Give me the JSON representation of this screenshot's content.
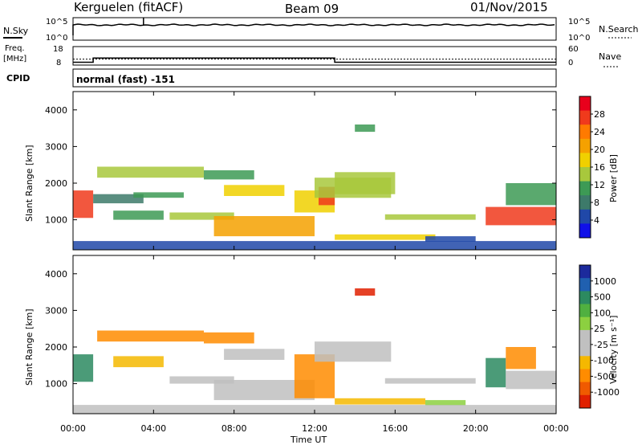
{
  "header": {
    "station": "Kerguelen (fitACF)",
    "beam": "Beam 09",
    "date": "01/Nov/2015"
  },
  "noise_panel": {
    "left_label": "N.Sky",
    "right_label": "N.Search",
    "left_ticks": [
      "10^5",
      "10^0"
    ],
    "right_ticks": [
      "10^5",
      "10^0"
    ]
  },
  "freq_panel": {
    "left_label_1": "Freq.",
    "left_label_2": "[MHz]",
    "right_label": "Nave",
    "left_ticks": [
      "18",
      "8"
    ],
    "right_ticks": [
      "60",
      "0"
    ],
    "freq_steps": [
      {
        "t0": 0.0,
        "t1": 1.0,
        "value": 9.5
      },
      {
        "t0": 1.0,
        "t1": 13.0,
        "value": 11.8
      },
      {
        "t0": 13.0,
        "t1": 24.0,
        "value": 9.5
      }
    ],
    "nave_level": 11.2
  },
  "cpid": {
    "label": "CPID",
    "text": "normal (fast) -151"
  },
  "x_axis": {
    "label": "Time UT",
    "ticks": [
      "00:00",
      "04:00",
      "08:00",
      "12:00",
      "16:00",
      "20:00",
      "00:00"
    ]
  },
  "power_panel": {
    "ylabel": "Slant Range [km]",
    "yticks": [
      "4000",
      "3000",
      "2000",
      "1000"
    ],
    "cbar_label": "Power [dB]",
    "cbar_ticks": [
      "28",
      "24",
      "20",
      "16",
      "12",
      "8",
      "4"
    ],
    "cbar_colors": [
      "#e8001c",
      "#f03a1c",
      "#ff7a00",
      "#f5a100",
      "#f0d000",
      "#a8c83c",
      "#3d9a55",
      "#3d7a6a",
      "#2048a8",
      "#1010e8"
    ]
  },
  "velocity_panel": {
    "ylabel": "Slant Range [km]",
    "yticks": [
      "4000",
      "3000",
      "2000",
      "1000"
    ],
    "cbar_label": "Velocity [m s⁻¹]",
    "cbar_ticks": [
      "1000",
      "500",
      "100",
      "25",
      "-25",
      "-100",
      "-500",
      "-1000"
    ],
    "cbar_colors": [
      "#1c2a9c",
      "#2060b0",
      "#2c8a60",
      "#50b040",
      "#8cd040",
      "#c0c0c0",
      "#c0c0c0",
      "#f5b800",
      "#ff8c00",
      "#f05a00",
      "#e02000"
    ]
  },
  "chart_data": {
    "type": "heatmap",
    "x_range_hours": [
      0,
      24
    ],
    "y_range_km": [
      180,
      4500
    ],
    "power_regions": [
      {
        "t0": 0.0,
        "t1": 1.0,
        "r0": 1050,
        "r1": 1800,
        "power": 27
      },
      {
        "t0": 1.0,
        "t1": 3.5,
        "r0": 1450,
        "r1": 1700,
        "power": 9
      },
      {
        "t0": 1.2,
        "t1": 6.5,
        "r0": 2150,
        "r1": 2450,
        "power": 14
      },
      {
        "t0": 2.0,
        "t1": 4.5,
        "r0": 1000,
        "r1": 1250,
        "power": 12
      },
      {
        "t0": 4.8,
        "t1": 8.0,
        "r0": 1000,
        "r1": 1200,
        "power": 15
      },
      {
        "t0": 3.0,
        "t1": 5.5,
        "r0": 1600,
        "r1": 1750,
        "power": 12
      },
      {
        "t0": 6.5,
        "t1": 9.0,
        "r0": 2100,
        "r1": 2350,
        "power": 12
      },
      {
        "t0": 7.5,
        "t1": 10.5,
        "r0": 1650,
        "r1": 1950,
        "power": 18
      },
      {
        "t0": 7.0,
        "t1": 12.0,
        "r0": 550,
        "r1": 1100,
        "power": 22
      },
      {
        "t0": 11.0,
        "t1": 13.0,
        "r0": 1200,
        "r1": 1800,
        "power": 17
      },
      {
        "t0": 12.2,
        "t1": 13.0,
        "r0": 1400,
        "r1": 1900,
        "power": 26
      },
      {
        "t0": 12.0,
        "t1": 15.8,
        "r0": 1600,
        "r1": 2150,
        "power": 16
      },
      {
        "t0": 13.0,
        "t1": 16.0,
        "r0": 1700,
        "r1": 2300,
        "power": 15
      },
      {
        "t0": 13.0,
        "t1": 18.0,
        "r0": 450,
        "r1": 600,
        "power": 19
      },
      {
        "t0": 14.0,
        "t1": 15.0,
        "r0": 3400,
        "r1": 3600,
        "power": 13
      },
      {
        "t0": 15.5,
        "t1": 20.0,
        "r0": 1000,
        "r1": 1150,
        "power": 16
      },
      {
        "t0": 17.5,
        "t1": 20.0,
        "r0": 400,
        "r1": 550,
        "power": 6
      },
      {
        "t0": 20.5,
        "t1": 24.0,
        "r0": 850,
        "r1": 1350,
        "power": 27
      },
      {
        "t0": 21.5,
        "t1": 24.0,
        "r0": 1400,
        "r1": 2000,
        "power": 12
      },
      {
        "t0": 0.0,
        "t1": 24.0,
        "r0": 180,
        "r1": 420,
        "power": 6
      }
    ],
    "velocity_regions": [
      {
        "t0": 0.0,
        "t1": 1.0,
        "r0": 1050,
        "r1": 1800,
        "velocity": 150
      },
      {
        "t0": 1.2,
        "t1": 6.5,
        "r0": 2150,
        "r1": 2450,
        "velocity": -150
      },
      {
        "t0": 2.0,
        "t1": 4.5,
        "r0": 1450,
        "r1": 1750,
        "velocity": -80
      },
      {
        "t0": 4.8,
        "t1": 8.0,
        "r0": 1000,
        "r1": 1200,
        "velocity": 0
      },
      {
        "t0": 6.5,
        "t1": 9.0,
        "r0": 2100,
        "r1": 2400,
        "velocity": -200
      },
      {
        "t0": 7.5,
        "t1": 10.5,
        "r0": 1650,
        "r1": 1950,
        "velocity": 0
      },
      {
        "t0": 7.0,
        "t1": 12.0,
        "r0": 550,
        "r1": 1100,
        "velocity": 0
      },
      {
        "t0": 11.0,
        "t1": 13.0,
        "r0": 600,
        "r1": 1800,
        "velocity": -300
      },
      {
        "t0": 12.0,
        "t1": 15.8,
        "r0": 1600,
        "r1": 2150,
        "velocity": 0
      },
      {
        "t0": 13.0,
        "t1": 17.5,
        "r0": 430,
        "r1": 600,
        "velocity": -80
      },
      {
        "t0": 14.0,
        "t1": 15.0,
        "r0": 3400,
        "r1": 3600,
        "velocity": -600
      },
      {
        "t0": 15.5,
        "t1": 20.0,
        "r0": 1000,
        "r1": 1150,
        "velocity": 0
      },
      {
        "t0": 17.5,
        "t1": 19.5,
        "r0": 400,
        "r1": 550,
        "velocity": 60
      },
      {
        "t0": 20.5,
        "t1": 21.5,
        "r0": 900,
        "r1": 1700,
        "velocity": 200
      },
      {
        "t0": 21.5,
        "t1": 24.0,
        "r0": 850,
        "r1": 1350,
        "velocity": 0
      },
      {
        "t0": 21.5,
        "t1": 23.0,
        "r0": 1400,
        "r1": 2000,
        "velocity": -150
      },
      {
        "t0": 0.0,
        "t1": 24.0,
        "r0": 180,
        "r1": 420,
        "velocity": 0
      }
    ]
  }
}
